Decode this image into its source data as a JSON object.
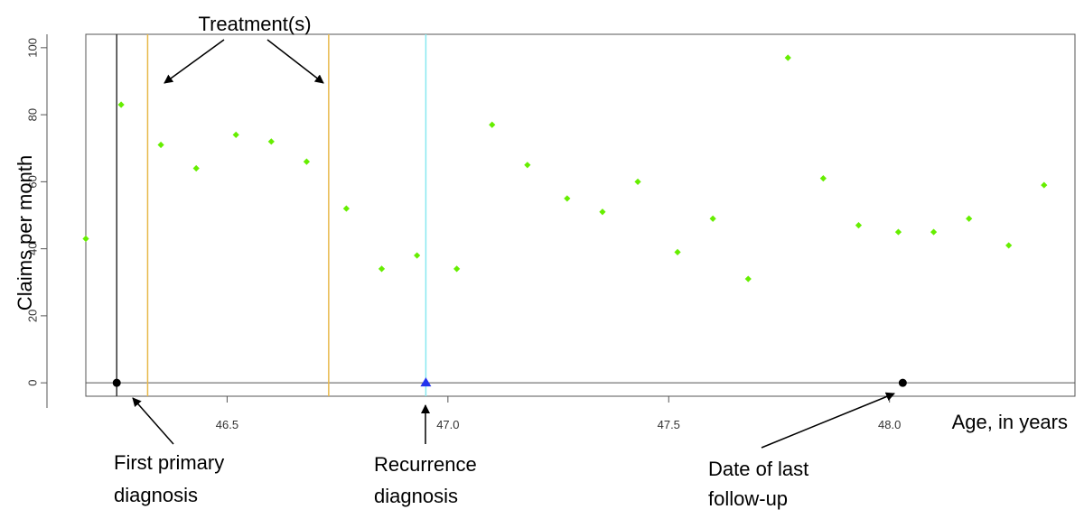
{
  "chart_data": {
    "type": "scatter",
    "title": "",
    "xlabel": "Age, in years",
    "ylabel": "Claims per month",
    "xlim": [
      46.18,
      48.42
    ],
    "ylim": [
      -4,
      104
    ],
    "x_ticks": [
      46.5,
      47.0,
      47.5,
      48.0
    ],
    "x_tick_labels": [
      "46.5",
      "47.0",
      "47.5",
      "48.0"
    ],
    "y_ticks": [
      0,
      20,
      40,
      60,
      80,
      100
    ],
    "y_tick_labels": [
      "0",
      "20",
      "40",
      "60",
      "80",
      "100"
    ],
    "grid": false,
    "series": [
      {
        "color": "#66ee00",
        "marker": "diamond",
        "points": [
          {
            "x": 46.18,
            "y": 43
          },
          {
            "x": 46.26,
            "y": 83
          },
          {
            "x": 46.35,
            "y": 71
          },
          {
            "x": 46.43,
            "y": 64
          },
          {
            "x": 46.52,
            "y": 74
          },
          {
            "x": 46.6,
            "y": 72
          },
          {
            "x": 46.68,
            "y": 66
          },
          {
            "x": 46.77,
            "y": 52
          },
          {
            "x": 46.85,
            "y": 34
          },
          {
            "x": 46.93,
            "y": 38
          },
          {
            "x": 47.02,
            "y": 34
          },
          {
            "x": 47.1,
            "y": 77
          },
          {
            "x": 47.18,
            "y": 65
          },
          {
            "x": 47.27,
            "y": 55
          },
          {
            "x": 47.35,
            "y": 51
          },
          {
            "x": 47.43,
            "y": 60
          },
          {
            "x": 47.52,
            "y": 39
          },
          {
            "x": 47.6,
            "y": 49
          },
          {
            "x": 47.68,
            "y": 31
          },
          {
            "x": 47.77,
            "y": 97
          },
          {
            "x": 47.85,
            "y": 61
          },
          {
            "x": 47.93,
            "y": 47
          },
          {
            "x": 48.02,
            "y": 45
          },
          {
            "x": 48.1,
            "y": 45
          },
          {
            "x": 48.18,
            "y": 49
          },
          {
            "x": 48.27,
            "y": 41
          },
          {
            "x": 48.35,
            "y": 59
          }
        ]
      }
    ],
    "reference_lines": [
      {
        "x": 46.25,
        "color": "#333333"
      },
      {
        "x": 46.32,
        "color": "#e8b84a"
      },
      {
        "x": 46.73,
        "color": "#e8b84a"
      },
      {
        "x": 46.95,
        "color": "#88e8f0"
      }
    ],
    "event_markers": [
      {
        "x": 46.25,
        "y": 0,
        "shape": "circle",
        "color": "#000000"
      },
      {
        "x": 46.95,
        "y": 0,
        "shape": "triangle",
        "color": "#2233ee"
      },
      {
        "x": 48.03,
        "y": 0,
        "shape": "circle",
        "color": "#000000"
      }
    ],
    "annotations": [
      {
        "lines": [
          "Treatment(s)"
        ],
        "targets": [
          46.32,
          46.73
        ],
        "position": "top"
      },
      {
        "lines": [
          "First primary",
          "diagnosis"
        ],
        "target": 46.25,
        "position": "bottom"
      },
      {
        "lines": [
          "Recurrence",
          "diagnosis"
        ],
        "target": 46.95,
        "position": "bottom"
      },
      {
        "lines": [
          "Date of last",
          "follow-up"
        ],
        "target": 48.03,
        "position": "bottom"
      }
    ]
  }
}
